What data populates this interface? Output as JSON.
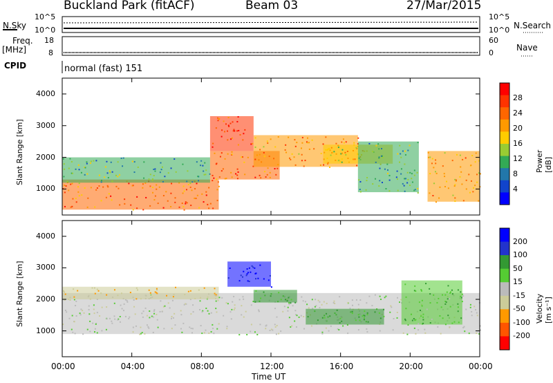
{
  "header": {
    "station": "Buckland Park (fitACF)",
    "beam": "Beam 03",
    "date": "27/Mar/2015"
  },
  "noise_panel": {
    "left_label": "N.Sky",
    "right_label": "N.Search",
    "left_ticks": [
      "10^5",
      "10^0"
    ],
    "right_ticks": [
      "10^5",
      "10^0"
    ]
  },
  "freq_panel": {
    "left_label_top": "Freq.",
    "left_label_bottom": "[MHz]",
    "right_label": "Nave",
    "left_ticks": [
      "18",
      "8"
    ],
    "right_ticks": [
      "60",
      "0"
    ]
  },
  "cpid_panel": {
    "label": "CPID",
    "text": "normal (fast) 151"
  },
  "x_axis": {
    "label": "Time UT",
    "ticks": [
      "00:00",
      "04:00",
      "08:00",
      "12:00",
      "16:00",
      "20:00",
      "00:00"
    ]
  },
  "chart_data": [
    {
      "type": "heatmap",
      "name": "power",
      "xlabel": "Time UT",
      "ylabel": "Slant Range [km]",
      "xlim": [
        0,
        24
      ],
      "ylim": [
        180,
        4500
      ],
      "yticks": [
        "1000",
        "2000",
        "3000",
        "4000"
      ],
      "colorbar": {
        "label": "Power [dB]",
        "ticks": [
          "28",
          "24",
          "20",
          "16",
          "12",
          "8",
          "4"
        ],
        "colors": [
          "#ff0000",
          "#ff3300",
          "#ff6600",
          "#ff9900",
          "#ffcc00",
          "#99cc33",
          "#33aa55",
          "#2277aa",
          "#1144cc",
          "#0000ff"
        ]
      },
      "regions": [
        {
          "t0": 0.0,
          "t1": 9.0,
          "r0": 350,
          "r1": 1300,
          "value": 24
        },
        {
          "t0": 0.0,
          "t1": 8.5,
          "r0": 1200,
          "r1": 2000,
          "value": 12
        },
        {
          "t0": 8.5,
          "t1": 11.0,
          "r0": 2200,
          "r1": 3300,
          "value": 26
        },
        {
          "t0": 8.5,
          "t1": 12.5,
          "r0": 1300,
          "r1": 2200,
          "value": 24
        },
        {
          "t0": 11.0,
          "t1": 17.0,
          "r0": 1700,
          "r1": 2700,
          "value": 22
        },
        {
          "t0": 15.0,
          "t1": 19.0,
          "r0": 1800,
          "r1": 2400,
          "value": 18
        },
        {
          "t0": 17.0,
          "t1": 20.5,
          "r0": 900,
          "r1": 2500,
          "value": 12
        },
        {
          "t0": 21.0,
          "t1": 24.0,
          "r0": 600,
          "r1": 2200,
          "value": 20
        }
      ]
    },
    {
      "type": "heatmap",
      "name": "velocity",
      "xlabel": "Time UT",
      "ylabel": "Slant Range [km]",
      "xlim": [
        0,
        24
      ],
      "ylim": [
        180,
        4500
      ],
      "yticks": [
        "1000",
        "2000",
        "3000",
        "4000"
      ],
      "colorbar": {
        "label": "Velocity [m s⁻¹]",
        "ticks": [
          "200",
          "100",
          "50",
          "15",
          "-15",
          "-50",
          "-100",
          "-200"
        ],
        "colors": [
          "#0000ff",
          "#2233cc",
          "#339933",
          "#55cc33",
          "#bbbbbb",
          "#cccc99",
          "#ff9900",
          "#ff5500",
          "#ff0000"
        ]
      },
      "regions": [
        {
          "t0": 0.0,
          "t1": 24.0,
          "r0": 900,
          "r1": 2200,
          "value": 0
        },
        {
          "t0": 9.5,
          "t1": 12.0,
          "r0": 2400,
          "r1": 3200,
          "value": 200
        },
        {
          "t0": 11.0,
          "t1": 13.5,
          "r0": 1900,
          "r1": 2300,
          "value": 50
        },
        {
          "t0": 14.0,
          "t1": 18.5,
          "r0": 1200,
          "r1": 1700,
          "value": 60
        },
        {
          "t0": 19.5,
          "t1": 23.0,
          "r0": 1200,
          "r1": 2600,
          "value": 40
        },
        {
          "t0": 0.0,
          "t1": 9.0,
          "r0": 2000,
          "r1": 2400,
          "value": -50
        }
      ]
    }
  ]
}
